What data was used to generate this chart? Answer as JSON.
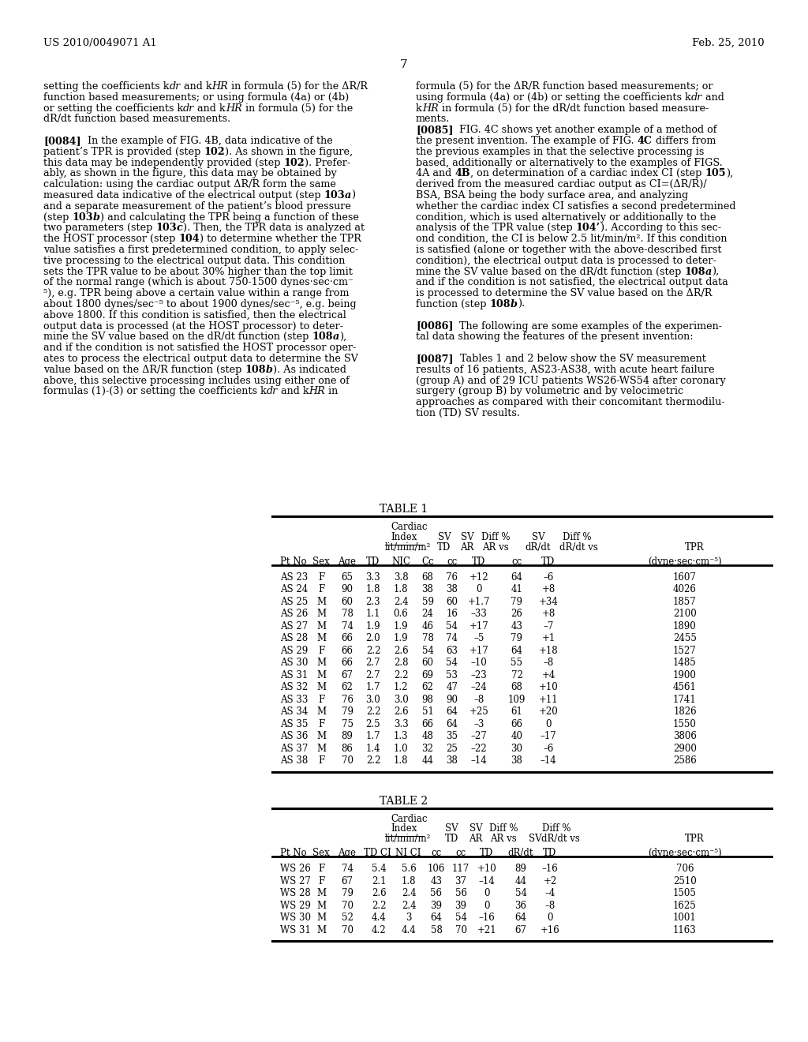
{
  "header_left": "US 2010/0049071 A1",
  "header_right": "Feb. 25, 2010",
  "page_number": "7",
  "bg_color": "#ffffff",
  "text_color": "#000000",
  "left_col_lines": [
    [
      "n",
      "setting the coefficients k",
      "i",
      "dr",
      "n",
      " and k",
      "i",
      "HR",
      "n",
      " in formula (5) for the ΔR/R"
    ],
    [
      "n",
      "function based measurements; or using formula (4a) or (4b)"
    ],
    [
      "n",
      "or setting the coefficients k",
      "i",
      "dr",
      "n",
      " and k",
      "i",
      "HR",
      "n",
      " in formula (5) for the"
    ],
    [
      "n",
      "dR/dt function based measurements."
    ],
    [
      "n",
      ""
    ],
    [
      "b",
      "[0084]",
      "n",
      "  In the example of FIG. 4B, data indicative of the"
    ],
    [
      "n",
      "patient’s TPR is provided (step ",
      "b",
      "102",
      "n",
      "). As shown in the figure,"
    ],
    [
      "n",
      "this data may be independently provided (step ",
      "b",
      "102",
      "n",
      "). Prefer-"
    ],
    [
      "n",
      "ably, as shown in the figure, this data may be obtained by"
    ],
    [
      "n",
      "calculation: using the cardiac output ΔR/R form the same"
    ],
    [
      "n",
      "measured data indicative of the electrical output (step ",
      "b",
      "103",
      "bi",
      "a",
      "n",
      ")"
    ],
    [
      "n",
      "and a separate measurement of the patient’s blood pressure"
    ],
    [
      "n",
      "(step ",
      "b",
      "103",
      "bi",
      "b",
      "n",
      ") and calculating the TPR being a function of these"
    ],
    [
      "n",
      "two parameters (step ",
      "b",
      "103",
      "bi",
      "c",
      "n",
      "). Then, the TPR data is analyzed at"
    ],
    [
      "n",
      "the HOST processor (step ",
      "b",
      "104",
      "n",
      ") to determine whether the TPR"
    ],
    [
      "n",
      "value satisfies a first predetermined condition, to apply selec-"
    ],
    [
      "n",
      "tive processing to the electrical output data. This condition"
    ],
    [
      "n",
      "sets the TPR value to be about 30% higher than the top limit"
    ],
    [
      "n",
      "of the normal range (which is about 750-1500 dynes·sec·cm⁻"
    ],
    [
      "n",
      "⁵), e.g. TPR being above a certain value within a range from"
    ],
    [
      "n",
      "about 1800 dynes/sec⁻⁵ to about 1900 dynes/sec⁻⁵, e.g. being"
    ],
    [
      "n",
      "above 1800. If this condition is satisfied, then the electrical"
    ],
    [
      "n",
      "output data is processed (at the HOST processor) to deter-"
    ],
    [
      "n",
      "mine the SV value based on the dR/dt function (step ",
      "b",
      "108",
      "bi",
      "a",
      "n",
      "),"
    ],
    [
      "n",
      "and if the condition is not satisfied the HOST processor oper-"
    ],
    [
      "n",
      "ates to process the electrical output data to determine the SV"
    ],
    [
      "n",
      "value based on the ΔR/R function (step ",
      "b",
      "108",
      "bi",
      "b",
      "n",
      "). As indicated"
    ],
    [
      "n",
      "above, this selective processing includes using either one of"
    ],
    [
      "n",
      "formulas (1)-(3) or setting the coefficients k",
      "i",
      "dr",
      "n",
      " and k",
      "i",
      "HR",
      "n",
      " in"
    ]
  ],
  "right_col_lines": [
    [
      "n",
      "formula (5) for the ΔR/R function based measurements; or"
    ],
    [
      "n",
      "using formula (4a) or (4b) or setting the coefficients k",
      "i",
      "dr",
      "n",
      " and"
    ],
    [
      "n",
      "k",
      "i",
      "HR",
      "n",
      " in formula (5) for the dR/dt function based measure-"
    ],
    [
      "n",
      "ments."
    ],
    [
      "b",
      "[0085]",
      "n",
      "  FIG. 4C shows yet another example of a method of"
    ],
    [
      "n",
      "the present invention. The example of FIG. ",
      "b",
      "4C",
      "n",
      " differs from"
    ],
    [
      "n",
      "the previous examples in that the selective processing is"
    ],
    [
      "n",
      "based, additionally or alternatively to the examples of FIGS."
    ],
    [
      "n",
      "4A and ",
      "b",
      "4B",
      "n",
      ", on determination of a cardiac index CI (step ",
      "b",
      "105",
      "n",
      "),"
    ],
    [
      "n",
      "derived from the measured cardiac output as CI=(ΔR/R)/"
    ],
    [
      "n",
      "BSA, BSA being the body surface area, and analyzing"
    ],
    [
      "n",
      "whether the cardiac index CI satisfies a second predetermined"
    ],
    [
      "n",
      "condition, which is used alternatively or additionally to the"
    ],
    [
      "n",
      "analysis of the TPR value (step ",
      "b",
      "104’",
      "n",
      "). According to this sec-"
    ],
    [
      "n",
      "ond condition, the CI is below 2.5 lit/min/m². If this condition"
    ],
    [
      "n",
      "is satisfied (alone or together with the above-described first"
    ],
    [
      "n",
      "condition), the electrical output data is processed to deter-"
    ],
    [
      "n",
      "mine the SV value based on the dR/dt function (step ",
      "b",
      "108",
      "bi",
      "a",
      "n",
      "),"
    ],
    [
      "n",
      "and if the condition is not satisfied, the electrical output data"
    ],
    [
      "n",
      "is processed to determine the SV value based on the ΔR/R"
    ],
    [
      "n",
      "function (step ",
      "b",
      "108",
      "bi",
      "b",
      "n",
      ")."
    ],
    [
      "n",
      ""
    ],
    [
      "b",
      "[0086]",
      "n",
      "  The following are some examples of the experimen-"
    ],
    [
      "n",
      "tal data showing the features of the present invention:"
    ],
    [
      "n",
      ""
    ],
    [
      "b",
      "[0087]",
      "n",
      "  Tables 1 and 2 below show the SV measurement"
    ],
    [
      "n",
      "results of 16 patients, AS23-AS38, with acute heart failure"
    ],
    [
      "n",
      "(group A) and of 29 ICU patients WS26-WS54 after coronary"
    ],
    [
      "n",
      "surgery (group B) by volumetric and by velocimetric"
    ],
    [
      "n",
      "approaches as compared with their concomitant thermodilu-"
    ],
    [
      "n",
      "tion (TD) SV results."
    ]
  ],
  "table1_data": [
    [
      "AS 23",
      "F",
      "65",
      "3.3",
      "3.8",
      "68",
      "76",
      "+12",
      "64",
      "–6",
      "1607"
    ],
    [
      "AS 24",
      "F",
      "90",
      "1.8",
      "1.8",
      "38",
      "38",
      "0",
      "41",
      "+8",
      "4026"
    ],
    [
      "AS 25",
      "M",
      "60",
      "2.3",
      "2.4",
      "59",
      "60",
      "+1.7",
      "79",
      "+34",
      "1857"
    ],
    [
      "AS 26",
      "M",
      "78",
      "1.1",
      "0.6",
      "24",
      "16",
      "–33",
      "26",
      "+8",
      "2100"
    ],
    [
      "AS 27",
      "M",
      "74",
      "1.9",
      "1.9",
      "46",
      "54",
      "+17",
      "43",
      "–7",
      "1890"
    ],
    [
      "AS 28",
      "M",
      "66",
      "2.0",
      "1.9",
      "78",
      "74",
      "–5",
      "79",
      "+1",
      "2455"
    ],
    [
      "AS 29",
      "F",
      "66",
      "2.2",
      "2.6",
      "54",
      "63",
      "+17",
      "64",
      "+18",
      "1527"
    ],
    [
      "AS 30",
      "M",
      "66",
      "2.7",
      "2.8",
      "60",
      "54",
      "–10",
      "55",
      "–8",
      "1485"
    ],
    [
      "AS 31",
      "M",
      "67",
      "2.7",
      "2.2",
      "69",
      "53",
      "–23",
      "72",
      "+4",
      "1900"
    ],
    [
      "AS 32",
      "M",
      "62",
      "1.7",
      "1.2",
      "62",
      "47",
      "–24",
      "68",
      "+10",
      "4561"
    ],
    [
      "AS 33",
      "F",
      "76",
      "3.0",
      "3.0",
      "98",
      "90",
      "–8",
      "109",
      "+11",
      "1741"
    ],
    [
      "AS 34",
      "M",
      "79",
      "2.2",
      "2.6",
      "51",
      "64",
      "+25",
      "61",
      "+20",
      "1826"
    ],
    [
      "AS 35",
      "F",
      "75",
      "2.5",
      "3.3",
      "66",
      "64",
      "–3",
      "66",
      "0",
      "1550"
    ],
    [
      "AS 36",
      "M",
      "89",
      "1.7",
      "1.3",
      "48",
      "35",
      "–27",
      "40",
      "–17",
      "3806"
    ],
    [
      "AS 37",
      "M",
      "86",
      "1.4",
      "1.0",
      "32",
      "25",
      "–22",
      "30",
      "–6",
      "2900"
    ],
    [
      "AS 38",
      "F",
      "70",
      "2.2",
      "1.8",
      "44",
      "38",
      "–14",
      "38",
      "–14",
      "2586"
    ]
  ],
  "table2_data": [
    [
      "WS 26",
      "F",
      "74",
      "5.4",
      "5.6",
      "106",
      "117",
      "+10",
      "89",
      "–16",
      "706"
    ],
    [
      "WS 27",
      "F",
      "67",
      "2.1",
      "1.8",
      "43",
      "37",
      "–14",
      "44",
      "+2",
      "2510"
    ],
    [
      "WS 28",
      "M",
      "79",
      "2.6",
      "2.4",
      "56",
      "56",
      "0",
      "54",
      "–4",
      "1505"
    ],
    [
      "WS 29",
      "M",
      "70",
      "2.2",
      "2.4",
      "39",
      "39",
      "0",
      "36",
      "–8",
      "1625"
    ],
    [
      "WS 30",
      "M",
      "52",
      "4.4",
      "3",
      "64",
      "54",
      "–16",
      "64",
      "0",
      "1001"
    ],
    [
      "WS 31",
      "M",
      "70",
      "4.2",
      "4.4",
      "58",
      "70",
      "+21",
      "67",
      "+16",
      "1163"
    ]
  ]
}
